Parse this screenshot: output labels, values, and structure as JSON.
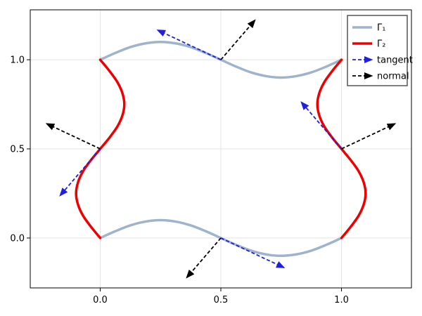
{
  "chart_data": {
    "type": "line",
    "title": "",
    "xlabel": "",
    "ylabel": "",
    "xlim": [
      -0.29,
      1.29
    ],
    "ylim": [
      -0.28,
      1.28
    ],
    "xticks": [
      0.0,
      0.5,
      1.0
    ],
    "xtick_labels": [
      "0.0",
      "0.5",
      "1.0"
    ],
    "yticks": [
      0.0,
      0.5,
      1.0
    ],
    "ytick_labels": [
      "0.0",
      "0.5",
      "1.0"
    ],
    "grid": true,
    "legend_position": "top-right",
    "series": [
      {
        "name": "Γ₁",
        "color": "#9eb3cc",
        "style": "solid",
        "segments": [
          {
            "x": [
              0,
              0.0625,
              0.125,
              0.1875,
              0.25,
              0.3125,
              0.375,
              0.4375,
              0.5,
              0.5625,
              0.625,
              0.6875,
              0.75,
              0.8125,
              0.875,
              0.9375,
              1.0
            ],
            "y": [
              1.0,
              1.038,
              1.071,
              1.092,
              1.1,
              1.092,
              1.071,
              1.038,
              1.0,
              0.962,
              0.929,
              0.908,
              0.9,
              0.908,
              0.929,
              0.962,
              1.0
            ]
          },
          {
            "x": [
              0,
              0.0625,
              0.125,
              0.1875,
              0.25,
              0.3125,
              0.375,
              0.4375,
              0.5,
              0.5625,
              0.625,
              0.6875,
              0.75,
              0.8125,
              0.875,
              0.9375,
              1.0
            ],
            "y": [
              0.0,
              0.038,
              0.071,
              0.092,
              0.1,
              0.092,
              0.071,
              0.038,
              0.0,
              -0.038,
              -0.071,
              -0.092,
              -0.1,
              -0.092,
              -0.071,
              -0.038,
              0.0
            ]
          }
        ]
      },
      {
        "name": "Γ₂",
        "color": "#ee0000",
        "style": "solid",
        "segments": [
          {
            "x": [
              0.0,
              0.038,
              0.071,
              0.092,
              0.1,
              0.092,
              0.071,
              0.038,
              0.0,
              -0.038,
              -0.071,
              -0.092,
              -0.1,
              -0.092,
              -0.071,
              -0.038,
              0.0
            ],
            "y": [
              1.0,
              0.9375,
              0.875,
              0.8125,
              0.75,
              0.6875,
              0.625,
              0.5625,
              0.5,
              0.4375,
              0.375,
              0.3125,
              0.25,
              0.1875,
              0.125,
              0.0625,
              0.0
            ]
          },
          {
            "x": [
              1.0,
              0.962,
              0.929,
              0.908,
              0.9,
              0.908,
              0.929,
              0.962,
              1.0,
              1.038,
              1.071,
              1.092,
              1.1,
              1.092,
              1.071,
              1.038,
              1.0
            ],
            "y": [
              1.0,
              0.9375,
              0.875,
              0.8125,
              0.75,
              0.6875,
              0.625,
              0.5625,
              0.5,
              0.4375,
              0.375,
              0.3125,
              0.25,
              0.1875,
              0.125,
              0.0625,
              0.0
            ]
          }
        ]
      }
    ],
    "arrows": [
      {
        "name": "tangent",
        "color": "#1f1fe0",
        "style": "dashed",
        "vectors": [
          {
            "from": [
              0.5,
              1.0
            ],
            "to": [
              0.24,
              1.165
            ]
          },
          {
            "from": [
              0.5,
              0.0
            ],
            "to": [
              0.76,
              -0.165
            ]
          },
          {
            "from": [
              0.0,
              0.5
            ],
            "to": [
              -0.165,
              0.24
            ]
          },
          {
            "from": [
              1.0,
              0.5
            ],
            "to": [
              0.835,
              0.76
            ]
          }
        ]
      },
      {
        "name": "normal",
        "color": "#000000",
        "style": "dashed",
        "vectors": [
          {
            "from": [
              0.5,
              1.0
            ],
            "to": [
              0.64,
              1.22
            ]
          },
          {
            "from": [
              0.5,
              0.0
            ],
            "to": [
              0.36,
              -0.22
            ]
          },
          {
            "from": [
              0.0,
              0.5
            ],
            "to": [
              -0.22,
              0.64
            ]
          },
          {
            "from": [
              1.0,
              0.5
            ],
            "to": [
              1.22,
              0.64
            ]
          }
        ]
      }
    ],
    "legend": [
      {
        "label": "Γ₁",
        "kind": "line",
        "color": "#9eb3cc"
      },
      {
        "label": "Γ₂",
        "kind": "line",
        "color": "#ee0000"
      },
      {
        "label": "tangent",
        "kind": "arrow",
        "color": "#1f1fe0"
      },
      {
        "label": "normal",
        "kind": "arrow",
        "color": "#000000"
      }
    ]
  }
}
